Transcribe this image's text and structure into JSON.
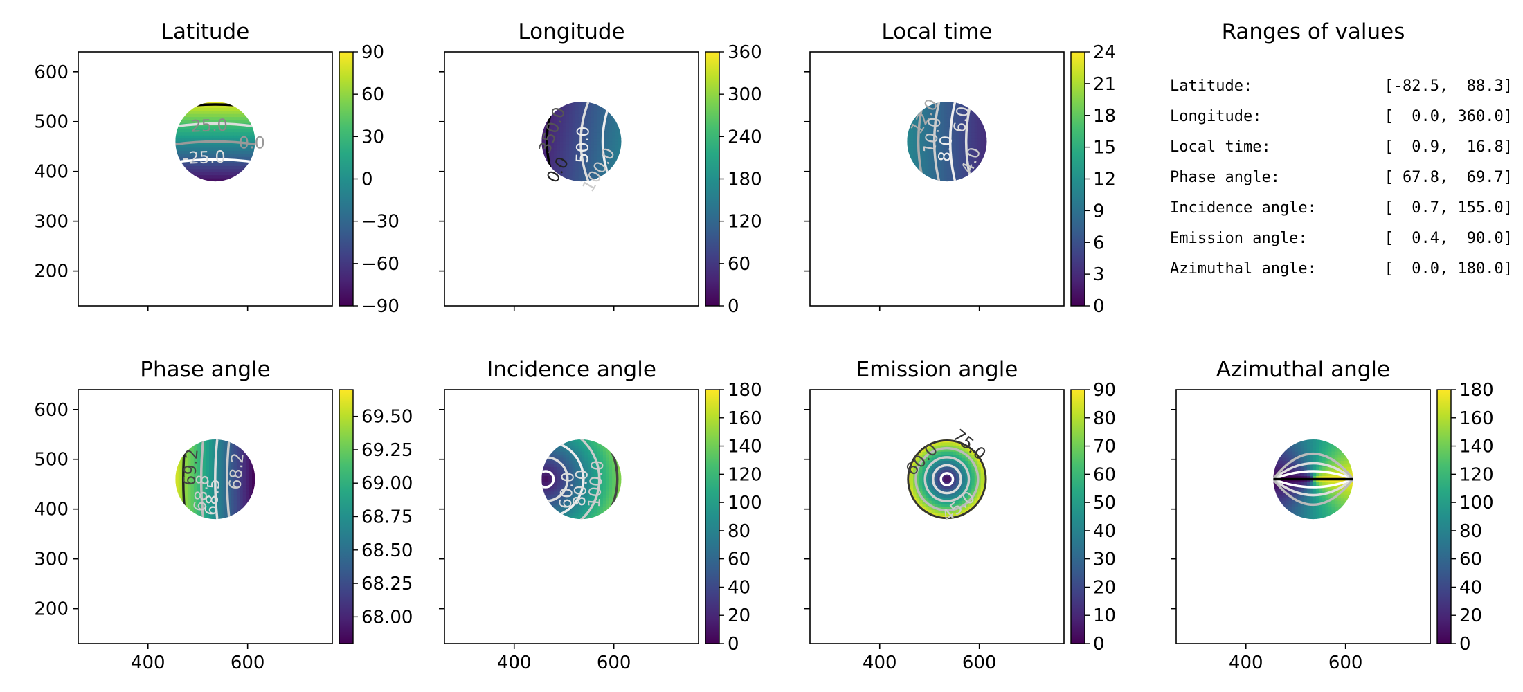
{
  "chart_data": [
    {
      "type": "heatmap",
      "title": "Latitude",
      "xlim": [
        260,
        770
      ],
      "ylim": [
        130,
        640
      ],
      "xticks": [
        400,
        600
      ],
      "yticks": [
        200,
        300,
        400,
        500,
        600
      ],
      "show_xticklabels": false,
      "show_yticklabels": true,
      "disk": {
        "cx": 535,
        "cy": 460,
        "r": 80
      },
      "field": "latitude",
      "clim": [
        -90,
        90
      ],
      "colorbar_ticks": [
        "90",
        "60",
        "30",
        "0",
        "−30",
        "−60",
        "−90"
      ],
      "colorbar_tick_values": [
        90,
        60,
        30,
        0,
        -30,
        -60,
        -90
      ],
      "contour_labels": [
        "25.0",
        "-25.0",
        "0.0"
      ]
    },
    {
      "type": "heatmap",
      "title": "Longitude",
      "xlim": [
        260,
        770
      ],
      "ylim": [
        130,
        640
      ],
      "xticks": [
        400,
        600
      ],
      "yticks": [
        200,
        300,
        400,
        500,
        600
      ],
      "show_xticklabels": false,
      "show_yticklabels": false,
      "disk": {
        "cx": 535,
        "cy": 460,
        "r": 80
      },
      "field": "longitude",
      "clim": [
        0,
        360
      ],
      "colorbar_ticks": [
        "360",
        "300",
        "240",
        "180",
        "120",
        "60",
        "0"
      ],
      "colorbar_tick_values": [
        360,
        300,
        240,
        180,
        120,
        60,
        0
      ],
      "contour_labels": [
        "350.0",
        "50.0",
        "100.0",
        "0.0"
      ]
    },
    {
      "type": "heatmap",
      "title": "Local time",
      "xlim": [
        260,
        770
      ],
      "ylim": [
        130,
        640
      ],
      "xticks": [
        400,
        600
      ],
      "yticks": [
        200,
        300,
        400,
        500,
        600
      ],
      "show_xticklabels": false,
      "show_yticklabels": false,
      "disk": {
        "cx": 535,
        "cy": 460,
        "r": 80
      },
      "field": "localtime",
      "clim": [
        0,
        24
      ],
      "colorbar_ticks": [
        "24",
        "21",
        "18",
        "15",
        "12",
        "9",
        "6",
        "3",
        "0"
      ],
      "colorbar_tick_values": [
        24,
        21,
        18,
        15,
        12,
        9,
        6,
        3,
        0
      ],
      "contour_labels": [
        "12.0",
        "10.0",
        "8.0",
        "6.0",
        "4.0"
      ]
    },
    {
      "type": "heatmap",
      "title": "Phase angle",
      "xlim": [
        260,
        770
      ],
      "ylim": [
        130,
        640
      ],
      "xticks": [
        400,
        600
      ],
      "yticks": [
        200,
        300,
        400,
        500,
        600
      ],
      "show_xticklabels": true,
      "show_yticklabels": true,
      "disk": {
        "cx": 535,
        "cy": 460,
        "r": 80
      },
      "field": "phase",
      "clim": [
        67.8,
        69.7
      ],
      "colorbar_ticks": [
        "69.50",
        "69.25",
        "69.00",
        "68.75",
        "68.50",
        "68.25",
        "68.00"
      ],
      "colorbar_tick_values": [
        69.5,
        69.25,
        69.0,
        68.75,
        68.5,
        68.25,
        68.0
      ],
      "contour_labels": [
        "69.2",
        "68.8",
        "68.5",
        "68.2"
      ]
    },
    {
      "type": "heatmap",
      "title": "Incidence angle",
      "xlim": [
        260,
        770
      ],
      "ylim": [
        130,
        640
      ],
      "xticks": [
        400,
        600
      ],
      "yticks": [
        200,
        300,
        400,
        500,
        600
      ],
      "show_xticklabels": true,
      "show_yticklabels": false,
      "disk": {
        "cx": 535,
        "cy": 460,
        "r": 80
      },
      "field": "incidence",
      "clim": [
        0,
        180
      ],
      "colorbar_ticks": [
        "180",
        "160",
        "140",
        "120",
        "100",
        "80",
        "60",
        "40",
        "20",
        "0"
      ],
      "colorbar_tick_values": [
        180,
        160,
        140,
        120,
        100,
        80,
        60,
        40,
        20,
        0
      ],
      "contour_labels": [
        "60.0",
        "80.0",
        "100.0"
      ]
    },
    {
      "type": "heatmap",
      "title": "Emission angle",
      "xlim": [
        260,
        770
      ],
      "ylim": [
        130,
        640
      ],
      "xticks": [
        400,
        600
      ],
      "yticks": [
        200,
        300,
        400,
        500,
        600
      ],
      "show_xticklabels": true,
      "show_yticklabels": false,
      "disk": {
        "cx": 535,
        "cy": 460,
        "r": 80
      },
      "field": "emission",
      "clim": [
        0,
        90
      ],
      "colorbar_ticks": [
        "90",
        "80",
        "70",
        "60",
        "50",
        "40",
        "30",
        "20",
        "10",
        "0"
      ],
      "colorbar_tick_values": [
        90,
        80,
        70,
        60,
        50,
        40,
        30,
        20,
        10,
        0
      ],
      "contour_labels": [
        "60.0",
        "75.0",
        "45.0"
      ]
    },
    {
      "type": "heatmap",
      "title": "Azimuthal angle",
      "xlim": [
        260,
        770
      ],
      "ylim": [
        130,
        640
      ],
      "xticks": [
        400,
        600
      ],
      "yticks": [
        200,
        300,
        400,
        500,
        600
      ],
      "show_xticklabels": true,
      "show_yticklabels": false,
      "disk": {
        "cx": 535,
        "cy": 460,
        "r": 80
      },
      "field": "azimuth",
      "clim": [
        0,
        180
      ],
      "colorbar_ticks": [
        "180",
        "160",
        "140",
        "120",
        "100",
        "80",
        "60",
        "40",
        "20",
        "0"
      ],
      "colorbar_tick_values": [
        180,
        160,
        140,
        120,
        100,
        80,
        60,
        40,
        20,
        0
      ],
      "contour_labels": []
    }
  ],
  "ranges_panel": {
    "title": "Ranges of values",
    "rows": [
      {
        "label": "Latitude:",
        "value": "[-82.5,  88.3]"
      },
      {
        "label": "Longitude:",
        "value": "[  0.0, 360.0]"
      },
      {
        "label": "Local time:",
        "value": "[  0.9,  16.8]"
      },
      {
        "label": "Phase angle:",
        "value": "[ 67.8,  69.7]"
      },
      {
        "label": "Incidence angle:",
        "value": "[  0.7, 155.0]"
      },
      {
        "label": "Emission angle:",
        "value": "[  0.4,  90.0]"
      },
      {
        "label": "Azimuthal angle:",
        "value": "[  0.0, 180.0]"
      }
    ]
  },
  "colormap": "viridis"
}
